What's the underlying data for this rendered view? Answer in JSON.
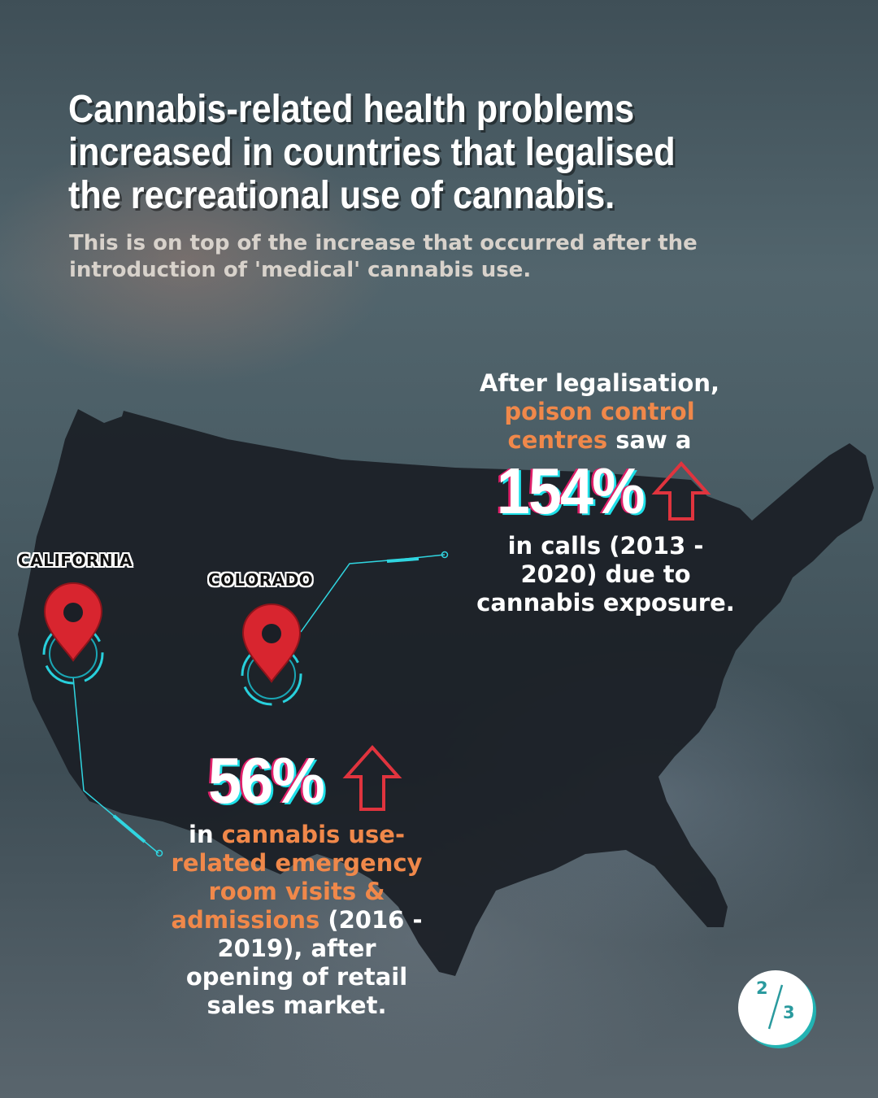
{
  "title": "Cannabis-related health problems increased in countries that legalised the recreational use of cannabis.",
  "subtitle": "This is on top of the increase that occurred after the introduction of 'medical' cannabis use.",
  "pins": {
    "california": "CALIFORNIA",
    "colorado": "COLORADO"
  },
  "stat_poison": {
    "intro_1": "After legalisation,",
    "highlight_1": "poison control",
    "highlight_2": "centres",
    "intro_2": " saw a",
    "value": "154%",
    "detail_1": "in calls (2013 -",
    "detail_2": "2020) due to",
    "detail_3": "cannabis exposure."
  },
  "stat_er": {
    "value": "56%",
    "prefix": "in ",
    "highlight_1": "cannabis use-",
    "highlight_2": "related emergency",
    "highlight_3": "room visits &",
    "highlight_4": "admissions",
    "suffix_1": " (2016 -",
    "line_6": "2019), after",
    "line_7": "opening of retail",
    "line_8": "sales market."
  },
  "page": {
    "current": "2",
    "total": "3"
  },
  "colors": {
    "accent_orange": "#f0884a",
    "arrow_red": "#e0343e",
    "pin_red": "#d8252f",
    "teal": "#23b3b3"
  },
  "icons": [
    "up-arrow-icon",
    "map-pin-icon",
    "us-map-silhouette"
  ]
}
